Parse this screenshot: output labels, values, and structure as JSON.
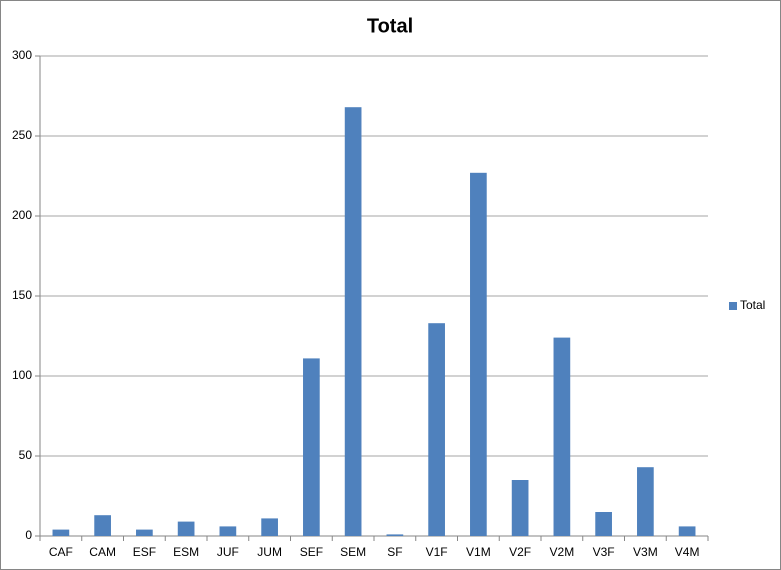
{
  "chart_data": {
    "type": "bar",
    "title": "Total",
    "categories": [
      "CAF",
      "CAM",
      "ESF",
      "ESM",
      "JUF",
      "JUM",
      "SEF",
      "SEM",
      "SF",
      "V1F",
      "V1M",
      "V2F",
      "V2M",
      "V3F",
      "V3M",
      "V4M"
    ],
    "series": [
      {
        "name": "Total",
        "color": "#4f81bd",
        "values": [
          4,
          13,
          4,
          9,
          6,
          11,
          111,
          268,
          1,
          133,
          227,
          35,
          124,
          15,
          43,
          6
        ]
      }
    ],
    "ylim": [
      0,
      300
    ],
    "yticks": [
      0,
      50,
      100,
      150,
      200,
      250,
      300
    ],
    "grid": true,
    "legend": "right"
  }
}
